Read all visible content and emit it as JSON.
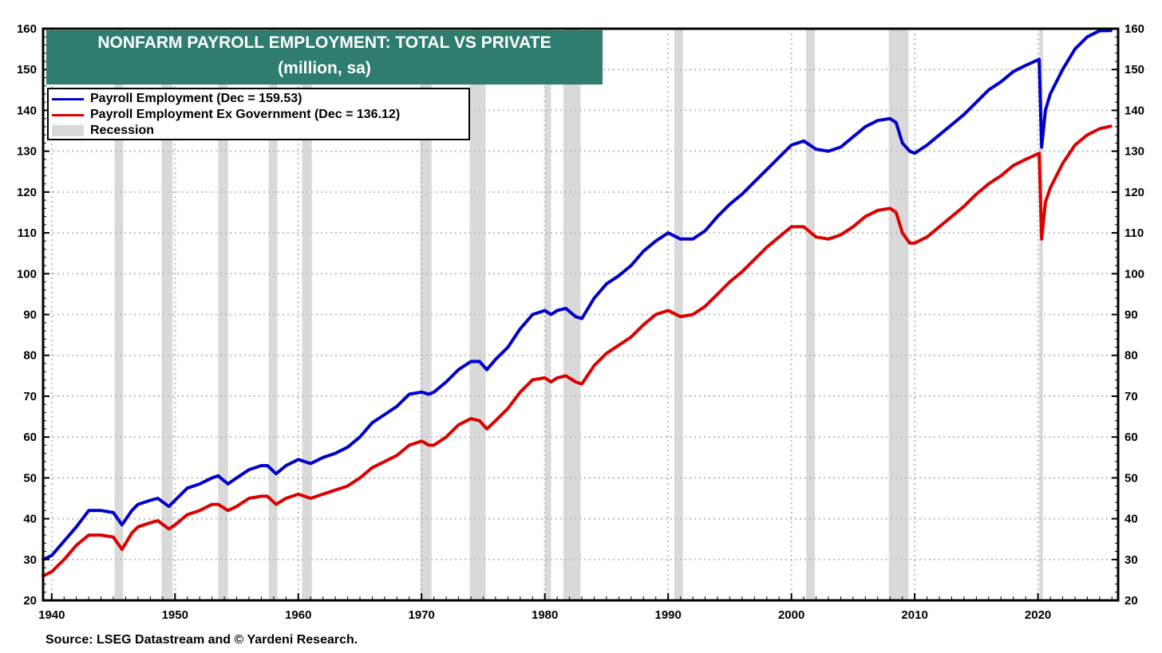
{
  "chart_data": {
    "type": "line",
    "title": "NONFARM PAYROLL EMPLOYMENT: TOTAL VS PRIVATE",
    "subtitle": "(million, sa)",
    "source": "Source: LSEG Datastream and © Yardeni Research.",
    "xlim": [
      1939.3,
      2026.5
    ],
    "ylim": [
      20,
      160
    ],
    "x_ticks": [
      1940,
      1950,
      1960,
      1970,
      1980,
      1990,
      2000,
      2010,
      2020
    ],
    "y_ticks": [
      20,
      30,
      40,
      50,
      60,
      70,
      80,
      90,
      100,
      110,
      120,
      130,
      140,
      150,
      160
    ],
    "grid": true,
    "legend": [
      {
        "label": "Payroll Employment (Dec  = 159.53)",
        "color": "#0000cc",
        "kind": "line"
      },
      {
        "label": "Payroll Employment Ex Government (Dec  = 136.12)",
        "color": "#dd0000",
        "kind": "line"
      },
      {
        "label": "Recession",
        "color": "#d9d9d9",
        "kind": "box"
      }
    ],
    "recessions": [
      [
        1945.1,
        1945.8
      ],
      [
        1948.9,
        1949.8
      ],
      [
        1953.5,
        1954.3
      ],
      [
        1957.6,
        1958.3
      ],
      [
        1960.3,
        1961.1
      ],
      [
        1969.9,
        1970.8
      ],
      [
        1973.9,
        1975.2
      ],
      [
        1980.0,
        1980.5
      ],
      [
        1981.5,
        1982.9
      ],
      [
        1990.5,
        1991.2
      ],
      [
        2001.2,
        2001.9
      ],
      [
        2007.9,
        2009.5
      ],
      [
        2020.1,
        2020.4
      ]
    ],
    "series": [
      {
        "name": "Payroll Employment",
        "color": "#0000cc",
        "points": [
          [
            1939.3,
            30
          ],
          [
            1940,
            31
          ],
          [
            1941,
            34.5
          ],
          [
            1942,
            38
          ],
          [
            1943,
            42
          ],
          [
            1944,
            42
          ],
          [
            1945,
            41.5
          ],
          [
            1945.7,
            38.5
          ],
          [
            1946.5,
            42
          ],
          [
            1947,
            43.5
          ],
          [
            1948,
            44.5
          ],
          [
            1948.6,
            45
          ],
          [
            1949.5,
            43
          ],
          [
            1950,
            44.5
          ],
          [
            1951,
            47.5
          ],
          [
            1952,
            48.5
          ],
          [
            1953,
            50
          ],
          [
            1953.5,
            50.5
          ],
          [
            1954.3,
            48.5
          ],
          [
            1955,
            50
          ],
          [
            1956,
            52
          ],
          [
            1957,
            53
          ],
          [
            1957.5,
            53
          ],
          [
            1958.2,
            51
          ],
          [
            1959,
            53
          ],
          [
            1960,
            54.5
          ],
          [
            1961,
            53.5
          ],
          [
            1962,
            55
          ],
          [
            1963,
            56
          ],
          [
            1964,
            57.5
          ],
          [
            1965,
            60
          ],
          [
            1966,
            63.5
          ],
          [
            1967,
            65.5
          ],
          [
            1968,
            67.5
          ],
          [
            1969,
            70.5
          ],
          [
            1970,
            71
          ],
          [
            1970.6,
            70.5
          ],
          [
            1971,
            71
          ],
          [
            1972,
            73.5
          ],
          [
            1973,
            76.5
          ],
          [
            1974,
            78.5
          ],
          [
            1974.7,
            78.5
          ],
          [
            1975.3,
            76.5
          ],
          [
            1976,
            79
          ],
          [
            1977,
            82
          ],
          [
            1978,
            86.5
          ],
          [
            1979,
            90
          ],
          [
            1980,
            91
          ],
          [
            1980.5,
            90
          ],
          [
            1981,
            91
          ],
          [
            1981.7,
            91.5
          ],
          [
            1982.5,
            89.5
          ],
          [
            1983,
            89
          ],
          [
            1984,
            94
          ],
          [
            1985,
            97.5
          ],
          [
            1986,
            99.5
          ],
          [
            1987,
            102
          ],
          [
            1988,
            105.5
          ],
          [
            1989,
            108
          ],
          [
            1990,
            110
          ],
          [
            1991,
            108.5
          ],
          [
            1992,
            108.5
          ],
          [
            1993,
            110.5
          ],
          [
            1994,
            114
          ],
          [
            1995,
            117
          ],
          [
            1996,
            119.5
          ],
          [
            1997,
            122.5
          ],
          [
            1998,
            125.5
          ],
          [
            1999,
            128.5
          ],
          [
            2000,
            131.5
          ],
          [
            2001,
            132.5
          ],
          [
            2002,
            130.5
          ],
          [
            2003,
            130
          ],
          [
            2004,
            131
          ],
          [
            2005,
            133.5
          ],
          [
            2006,
            136
          ],
          [
            2007,
            137.5
          ],
          [
            2008,
            138
          ],
          [
            2008.5,
            137
          ],
          [
            2009,
            132
          ],
          [
            2009.6,
            130
          ],
          [
            2010,
            129.5
          ],
          [
            2011,
            131.5
          ],
          [
            2012,
            134
          ],
          [
            2013,
            136.5
          ],
          [
            2014,
            139
          ],
          [
            2015,
            142
          ],
          [
            2016,
            145
          ],
          [
            2017,
            147
          ],
          [
            2018,
            149.5
          ],
          [
            2019,
            151
          ],
          [
            2020.1,
            152.5
          ],
          [
            2020.3,
            131
          ],
          [
            2020.6,
            140
          ],
          [
            2021,
            144
          ],
          [
            2022,
            150
          ],
          [
            2023,
            155
          ],
          [
            2024,
            158
          ],
          [
            2025,
            159.5
          ],
          [
            2025.9,
            159.53
          ]
        ]
      },
      {
        "name": "Payroll Employment Ex Government",
        "color": "#dd0000",
        "points": [
          [
            1939.3,
            26
          ],
          [
            1940,
            27
          ],
          [
            1941,
            30
          ],
          [
            1942,
            33.5
          ],
          [
            1943,
            36
          ],
          [
            1944,
            36
          ],
          [
            1945,
            35.5
          ],
          [
            1945.7,
            32.5
          ],
          [
            1946.5,
            36.5
          ],
          [
            1947,
            38
          ],
          [
            1948,
            39
          ],
          [
            1948.6,
            39.5
          ],
          [
            1949.5,
            37.5
          ],
          [
            1950,
            38.5
          ],
          [
            1951,
            41
          ],
          [
            1952,
            42
          ],
          [
            1953,
            43.5
          ],
          [
            1953.5,
            43.5
          ],
          [
            1954.3,
            42
          ],
          [
            1955,
            43
          ],
          [
            1956,
            45
          ],
          [
            1957,
            45.5
          ],
          [
            1957.5,
            45.5
          ],
          [
            1958.2,
            43.5
          ],
          [
            1959,
            45
          ],
          [
            1960,
            46
          ],
          [
            1961,
            45
          ],
          [
            1962,
            46
          ],
          [
            1963,
            47
          ],
          [
            1964,
            48
          ],
          [
            1965,
            50
          ],
          [
            1966,
            52.5
          ],
          [
            1967,
            54
          ],
          [
            1968,
            55.5
          ],
          [
            1969,
            58
          ],
          [
            1970,
            59
          ],
          [
            1970.6,
            58
          ],
          [
            1971,
            58
          ],
          [
            1972,
            60
          ],
          [
            1973,
            63
          ],
          [
            1974,
            64.5
          ],
          [
            1974.7,
            64
          ],
          [
            1975.3,
            62
          ],
          [
            1976,
            64
          ],
          [
            1977,
            67
          ],
          [
            1978,
            71
          ],
          [
            1979,
            74
          ],
          [
            1980,
            74.5
          ],
          [
            1980.5,
            73.5
          ],
          [
            1981,
            74.5
          ],
          [
            1981.7,
            75
          ],
          [
            1982.5,
            73.5
          ],
          [
            1983,
            73
          ],
          [
            1984,
            77.5
          ],
          [
            1985,
            80.5
          ],
          [
            1986,
            82.5
          ],
          [
            1987,
            84.5
          ],
          [
            1988,
            87.5
          ],
          [
            1989,
            90
          ],
          [
            1990,
            91
          ],
          [
            1991,
            89.5
          ],
          [
            1992,
            90
          ],
          [
            1993,
            92
          ],
          [
            1994,
            95
          ],
          [
            1995,
            98
          ],
          [
            1996,
            100.5
          ],
          [
            1997,
            103.5
          ],
          [
            1998,
            106.5
          ],
          [
            1999,
            109
          ],
          [
            2000,
            111.5
          ],
          [
            2001,
            111.5
          ],
          [
            2002,
            109
          ],
          [
            2003,
            108.5
          ],
          [
            2004,
            109.5
          ],
          [
            2005,
            111.5
          ],
          [
            2006,
            114
          ],
          [
            2007,
            115.5
          ],
          [
            2008,
            116
          ],
          [
            2008.5,
            115
          ],
          [
            2009,
            110
          ],
          [
            2009.6,
            107.5
          ],
          [
            2010,
            107.5
          ],
          [
            2011,
            109
          ],
          [
            2012,
            111.5
          ],
          [
            2013,
            114
          ],
          [
            2014,
            116.5
          ],
          [
            2015,
            119.5
          ],
          [
            2016,
            122
          ],
          [
            2017,
            124
          ],
          [
            2018,
            126.5
          ],
          [
            2019,
            128
          ],
          [
            2020.1,
            129.5
          ],
          [
            2020.3,
            108.5
          ],
          [
            2020.6,
            117.5
          ],
          [
            2021,
            121
          ],
          [
            2022,
            127
          ],
          [
            2023,
            131.5
          ],
          [
            2024,
            134
          ],
          [
            2025,
            135.5
          ],
          [
            2025.9,
            136.12
          ]
        ]
      }
    ]
  }
}
